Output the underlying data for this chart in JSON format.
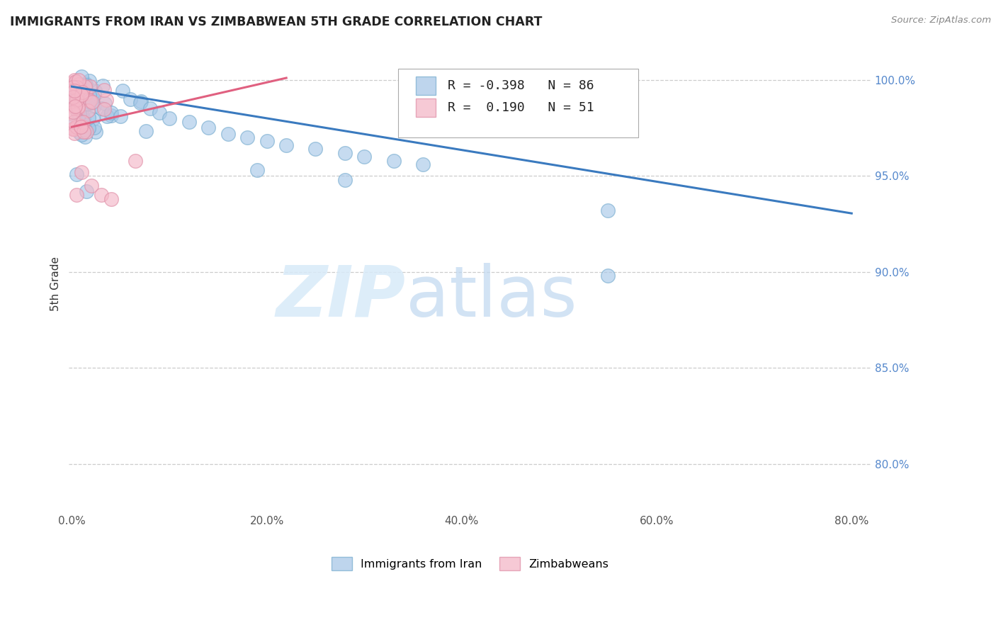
{
  "title": "IMMIGRANTS FROM IRAN VS ZIMBABWEAN 5TH GRADE CORRELATION CHART",
  "source": "Source: ZipAtlas.com",
  "ylabel": "5th Grade",
  "legend_blue_label": "Immigrants from Iran",
  "legend_pink_label": "Zimbabweans",
  "blue_color": "#a8c8e8",
  "blue_edge_color": "#7aaed0",
  "pink_color": "#f4b8c8",
  "pink_edge_color": "#e090a8",
  "blue_line_color": "#3a7abf",
  "pink_line_color": "#e06080",
  "right_tick_color": "#5588cc",
  "grid_color": "#cccccc",
  "title_color": "#222222",
  "source_color": "#888888",
  "watermark_zip_color": "#d8eaf8",
  "watermark_atlas_color": "#c0d8f0",
  "xlim": [
    -0.003,
    0.82
  ],
  "ylim": [
    0.775,
    1.013
  ],
  "xticks": [
    0.0,
    0.2,
    0.4,
    0.6,
    0.8
  ],
  "xticklabels": [
    "0.0%",
    "20.0%",
    "40.0%",
    "60.0%",
    "80.0%"
  ],
  "yticks": [
    0.8,
    0.85,
    0.9,
    0.95,
    1.0
  ],
  "yticklabels": [
    "80.0%",
    "85.0%",
    "90.0%",
    "95.0%",
    "100.0%"
  ],
  "blue_line_x": [
    0.0,
    0.8
  ],
  "blue_line_y": [
    0.9965,
    0.9305
  ],
  "pink_line_x": [
    0.0,
    0.22
  ],
  "pink_line_y": [
    0.9755,
    1.001
  ],
  "legend_text_blue": "R = -0.398   N = 86",
  "legend_text_pink": "R =  0.190   N = 51"
}
